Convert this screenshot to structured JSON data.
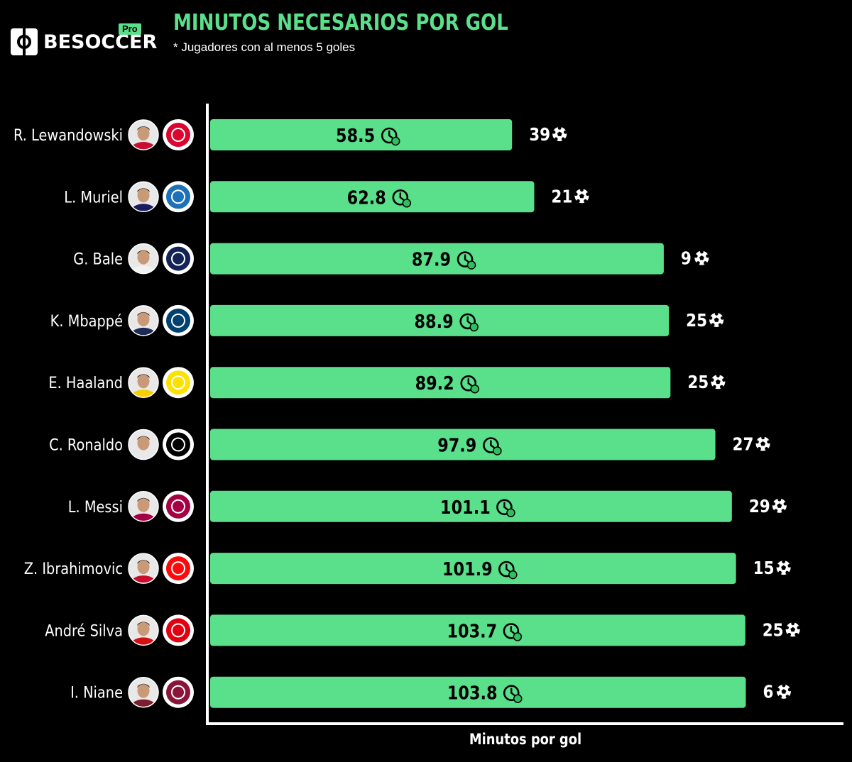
{
  "header": {
    "logo_text": "BESOCCER",
    "logo_badge": "Pro",
    "title": "MINUTOS NECESARIOS POR GOL",
    "subtitle": "* Jugadores con al menos 5 goles"
  },
  "chart_data": {
    "type": "bar",
    "orientation": "horizontal",
    "title": "MINUTOS NECESARIOS POR GOL",
    "subtitle": "* Jugadores con al menos 5 goles",
    "xlabel": "Minutos por gol",
    "ylabel": "",
    "xlim": [
      0,
      123
    ],
    "grid": false,
    "bar_color": "#5ae08a",
    "categories": [
      "R. Lewandowski",
      "L. Muriel",
      "G. Bale",
      "K. Mbappé",
      "E. Haaland",
      "C. Ronaldo",
      "L. Messi",
      "Z. Ibrahimovic",
      "André Silva",
      "I. Niane"
    ],
    "values": [
      58.5,
      62.8,
      87.9,
      88.9,
      89.2,
      97.9,
      101.1,
      101.9,
      103.7,
      103.8
    ],
    "value_labels": [
      "58.5",
      "62.8",
      "87.9",
      "88.9",
      "89.2",
      "97.9",
      "101.1",
      "101.9",
      "103.7",
      "103.8"
    ],
    "goals": [
      39,
      21,
      9,
      25,
      25,
      27,
      29,
      15,
      25,
      6
    ],
    "goal_labels": [
      "39",
      "21",
      "9",
      "25",
      "25",
      "27",
      "29",
      "15",
      "25",
      "6"
    ],
    "player_icons": [
      "avatar-lewandowski-icon",
      "avatar-muriel-icon",
      "avatar-bale-icon",
      "avatar-mbappe-icon",
      "avatar-haaland-icon",
      "avatar-ronaldo-icon",
      "avatar-messi-icon",
      "avatar-ibrahimovic-icon",
      "avatar-andre-silva-icon",
      "avatar-niane-icon"
    ],
    "club_icons": [
      "bayern-munchen-crest-icon",
      "atalanta-crest-icon",
      "tottenham-crest-icon",
      "psg-crest-icon",
      "borussia-dortmund-crest-icon",
      "juventus-crest-icon",
      "barcelona-crest-icon",
      "ac-milan-crest-icon",
      "eintracht-frankfurt-crest-icon",
      "fc-metz-crest-icon"
    ],
    "club_colors": [
      "#dc052d",
      "#1e71b8",
      "#132257",
      "#004170",
      "#fde100",
      "#000000",
      "#a50044",
      "#fb090b",
      "#e1000f",
      "#8a1538"
    ],
    "shirt_colors": [
      "#c8102e",
      "#1b1b5e",
      "#f2f2f2",
      "#1d2c56",
      "#f5d000",
      "#e9e9e9",
      "#a50044",
      "#c8102e",
      "#d40f14",
      "#7a1f2b"
    ]
  }
}
